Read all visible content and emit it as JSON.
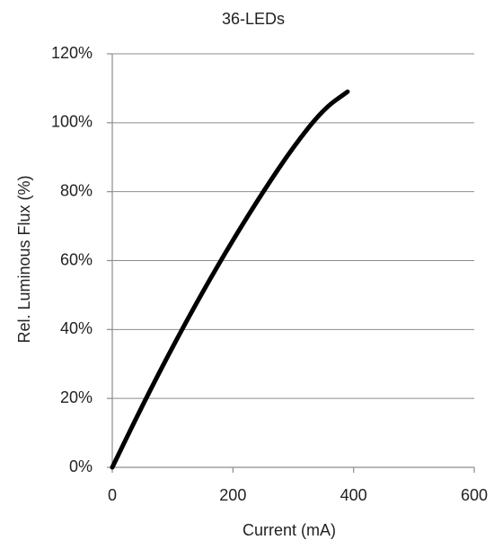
{
  "chart_data": {
    "type": "line",
    "title": "36-LEDs",
    "xlabel": "Current (mA)",
    "ylabel": "Rel. Luminous Flux (%)",
    "xlim": [
      0,
      600
    ],
    "ylim": [
      0,
      120
    ],
    "x_ticks": [
      "0",
      "200",
      "400",
      "600"
    ],
    "x_tick_values": [
      0,
      200,
      400,
      600
    ],
    "y_ticks": [
      "0%",
      "20%",
      "40%",
      "60%",
      "80%",
      "100%",
      "120%"
    ],
    "y_tick_values": [
      0,
      20,
      40,
      60,
      80,
      100,
      120
    ],
    "grid": true,
    "legend": "none",
    "line_color": "#000000",
    "series": [
      {
        "x": [
          0,
          50,
          100,
          150,
          200,
          250,
          300,
          350,
          390
        ],
        "y": [
          0,
          18,
          35,
          51,
          66,
          80,
          93,
          104,
          109
        ]
      }
    ]
  }
}
